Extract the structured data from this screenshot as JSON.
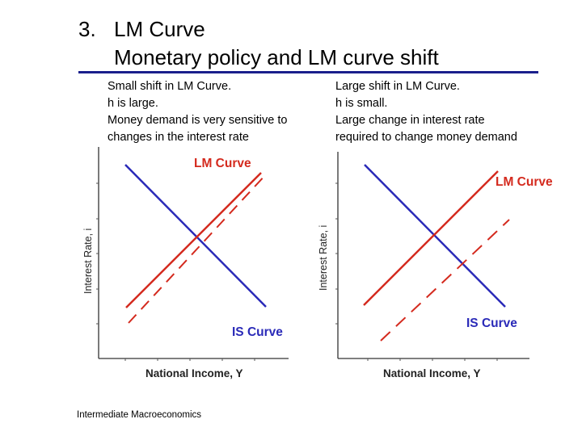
{
  "header": {
    "number": "3.",
    "title": "LM Curve",
    "subtitle": "Monetary policy and LM curve shift"
  },
  "left_panel": {
    "notes": [
      "Small shift in LM Curve.",
      "h is large.",
      "Money demand is very sensitive to",
      "changes in the interest rate"
    ],
    "y_axis_label": "Interest Rate, i",
    "x_axis_label": "National Income, Y",
    "lm_label": "LM Curve",
    "is_label": "IS Curve"
  },
  "right_panel": {
    "notes": [
      "Large shift in LM Curve.",
      "h is small.",
      "Large change in interest rate",
      "required to change money demand"
    ],
    "y_axis_label": "Interest Rate, i",
    "x_axis_label": "National Income, Y",
    "lm_label": "LM Curve",
    "is_label": "IS Curve"
  },
  "colors": {
    "lm_curve": "#d42a1e",
    "is_curve": "#2a2ab8",
    "axis": "#333333",
    "rule": "#1a1f8c"
  },
  "footer": "Intermediate Macroeconomics"
}
